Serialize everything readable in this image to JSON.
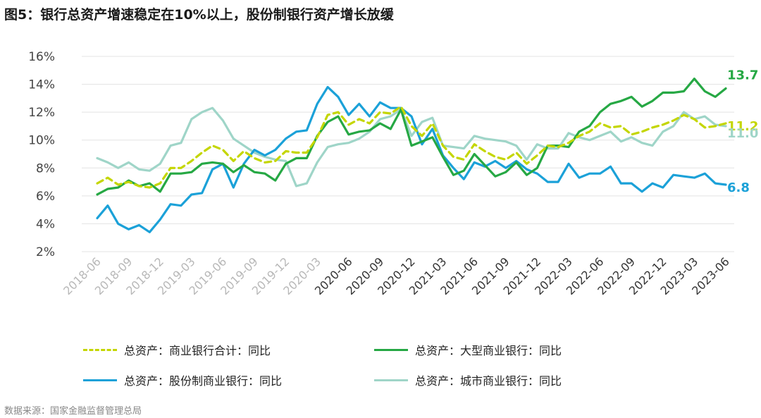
{
  "title": "图5：银行总资产增速稳定在10%以上，股份制银行资产增长放缓",
  "source": "数据来源：国家金融监督管理总局",
  "chart_data": {
    "type": "line",
    "ylim": [
      2,
      16
    ],
    "y_ticks": [
      "16%",
      "14%",
      "12%",
      "10%",
      "8%",
      "6%",
      "4%",
      "2%"
    ],
    "y_tick_values": [
      16,
      14,
      12,
      10,
      8,
      6,
      4,
      2
    ],
    "x_ticks": [
      "2018-06",
      "2018-09",
      "2018-12",
      "2019-03",
      "2019-06",
      "2019-09",
      "2019-12",
      "2020-03",
      "2020-06",
      "2020-09",
      "2020-12",
      "2021-03",
      "2021-06",
      "2021-09",
      "2021-12",
      "2022-03",
      "2022-06",
      "2022-09",
      "2022-12",
      "2023-03",
      "2023-06"
    ],
    "grid": true,
    "x": [
      "2018-06",
      "2018-07",
      "2018-08",
      "2018-09",
      "2018-10",
      "2018-11",
      "2018-12",
      "2019-01",
      "2019-02",
      "2019-03",
      "2019-04",
      "2019-05",
      "2019-06",
      "2019-07",
      "2019-08",
      "2019-09",
      "2019-10",
      "2019-11",
      "2019-12",
      "2020-01",
      "2020-02",
      "2020-03",
      "2020-04",
      "2020-05",
      "2020-06",
      "2020-07",
      "2020-08",
      "2020-09",
      "2020-10",
      "2020-11",
      "2020-12",
      "2021-01",
      "2021-02",
      "2021-03",
      "2021-04",
      "2021-05",
      "2021-06",
      "2021-07",
      "2021-08",
      "2021-09",
      "2021-10",
      "2021-11",
      "2021-12",
      "2022-01",
      "2022-02",
      "2022-03",
      "2022-04",
      "2022-05",
      "2022-06",
      "2022-07",
      "2022-08",
      "2022-09",
      "2022-10",
      "2022-11",
      "2022-12",
      "2023-01",
      "2023-02",
      "2023-03",
      "2023-04",
      "2023-05",
      "2023-06"
    ],
    "series": [
      {
        "name": "总资产：商业银行合计：同比",
        "color": "#C4D600",
        "dashed": true,
        "values": [
          6.9,
          7.3,
          6.8,
          7.0,
          6.7,
          6.6,
          6.9,
          8.0,
          8.0,
          8.5,
          9.1,
          9.6,
          9.3,
          8.5,
          9.2,
          8.7,
          8.4,
          8.5,
          9.2,
          9.1,
          9.1,
          10.2,
          11.8,
          12.0,
          11.1,
          11.5,
          11.2,
          12.0,
          11.9,
          12.4,
          11.0,
          10.3,
          11.2,
          9.6,
          8.8,
          8.6,
          9.7,
          9.2,
          8.8,
          8.6,
          9.1,
          8.3,
          8.9,
          9.6,
          9.5,
          9.8,
          10.3,
          10.6,
          11.2,
          10.9,
          11.0,
          10.4,
          10.6,
          10.9,
          11.1,
          11.4,
          11.8,
          11.5,
          10.9,
          11.0,
          11.2
        ]
      },
      {
        "name": "总资产：大型商业银行：同比",
        "color": "#26A844",
        "dashed": false,
        "values": [
          6.1,
          6.5,
          6.6,
          7.1,
          6.7,
          6.9,
          6.3,
          7.6,
          7.6,
          7.7,
          8.3,
          8.4,
          8.3,
          7.7,
          8.2,
          7.7,
          7.6,
          7.1,
          8.3,
          8.7,
          8.7,
          10.3,
          11.3,
          11.7,
          10.4,
          10.6,
          10.7,
          11.2,
          10.8,
          12.2,
          9.6,
          9.9,
          10.2,
          8.8,
          7.5,
          7.8,
          9.0,
          8.2,
          7.4,
          7.7,
          8.4,
          7.5,
          8.0,
          9.6,
          9.6,
          9.5,
          10.6,
          11.0,
          12.0,
          12.6,
          12.8,
          13.1,
          12.4,
          12.8,
          13.4,
          13.4,
          13.5,
          14.4,
          13.5,
          13.1,
          13.7
        ]
      },
      {
        "name": "总资产：股份制商业银行：同比",
        "color": "#1BA1D8",
        "dashed": false,
        "values": [
          4.4,
          5.3,
          4.0,
          3.6,
          3.9,
          3.4,
          4.3,
          5.4,
          5.3,
          6.1,
          6.2,
          7.9,
          8.3,
          6.6,
          8.3,
          9.3,
          8.9,
          9.3,
          10.1,
          10.6,
          10.7,
          12.6,
          13.8,
          13.1,
          11.8,
          12.6,
          11.7,
          12.7,
          12.3,
          12.3,
          11.7,
          9.7,
          10.8,
          8.9,
          8.0,
          7.2,
          8.4,
          8.1,
          8.5,
          8.0,
          8.5,
          7.9,
          7.6,
          7.0,
          7.0,
          8.3,
          7.3,
          7.6,
          7.6,
          8.1,
          6.9,
          6.9,
          6.3,
          6.9,
          6.6,
          7.5,
          7.4,
          7.3,
          7.6,
          6.9,
          6.8
        ]
      },
      {
        "name": "总资产：城市商业银行：同比",
        "color": "#9FD5C8",
        "dashed": false,
        "values": [
          8.7,
          8.4,
          8.0,
          8.4,
          7.9,
          7.8,
          8.3,
          9.6,
          9.8,
          11.5,
          12.0,
          12.3,
          11.4,
          10.1,
          9.6,
          9.1,
          8.8,
          8.6,
          8.5,
          6.7,
          6.9,
          8.4,
          9.5,
          9.7,
          9.8,
          10.1,
          10.6,
          11.5,
          11.7,
          12.2,
          10.3,
          11.3,
          11.6,
          9.6,
          9.5,
          9.4,
          10.3,
          10.1,
          10.0,
          9.9,
          9.6,
          8.6,
          9.7,
          9.4,
          9.4,
          10.5,
          10.2,
          10.0,
          10.3,
          10.6,
          9.9,
          10.2,
          9.8,
          9.6,
          10.6,
          11.0,
          12.0,
          11.5,
          11.7,
          11.1,
          11.0
        ]
      }
    ],
    "end_labels": [
      {
        "series": 1,
        "text": "13.7"
      },
      {
        "series": 0,
        "text": "11.2"
      },
      {
        "series": 3,
        "text": "11.0"
      },
      {
        "series": 2,
        "text": "6.8"
      }
    ],
    "legend": [
      "总资产：商业银行合计：同比",
      "总资产：大型商业银行：同比",
      "总资产：股份制商业银行：同比",
      "总资产：城市商业银行：同比"
    ],
    "legend_placement": "bottom"
  }
}
